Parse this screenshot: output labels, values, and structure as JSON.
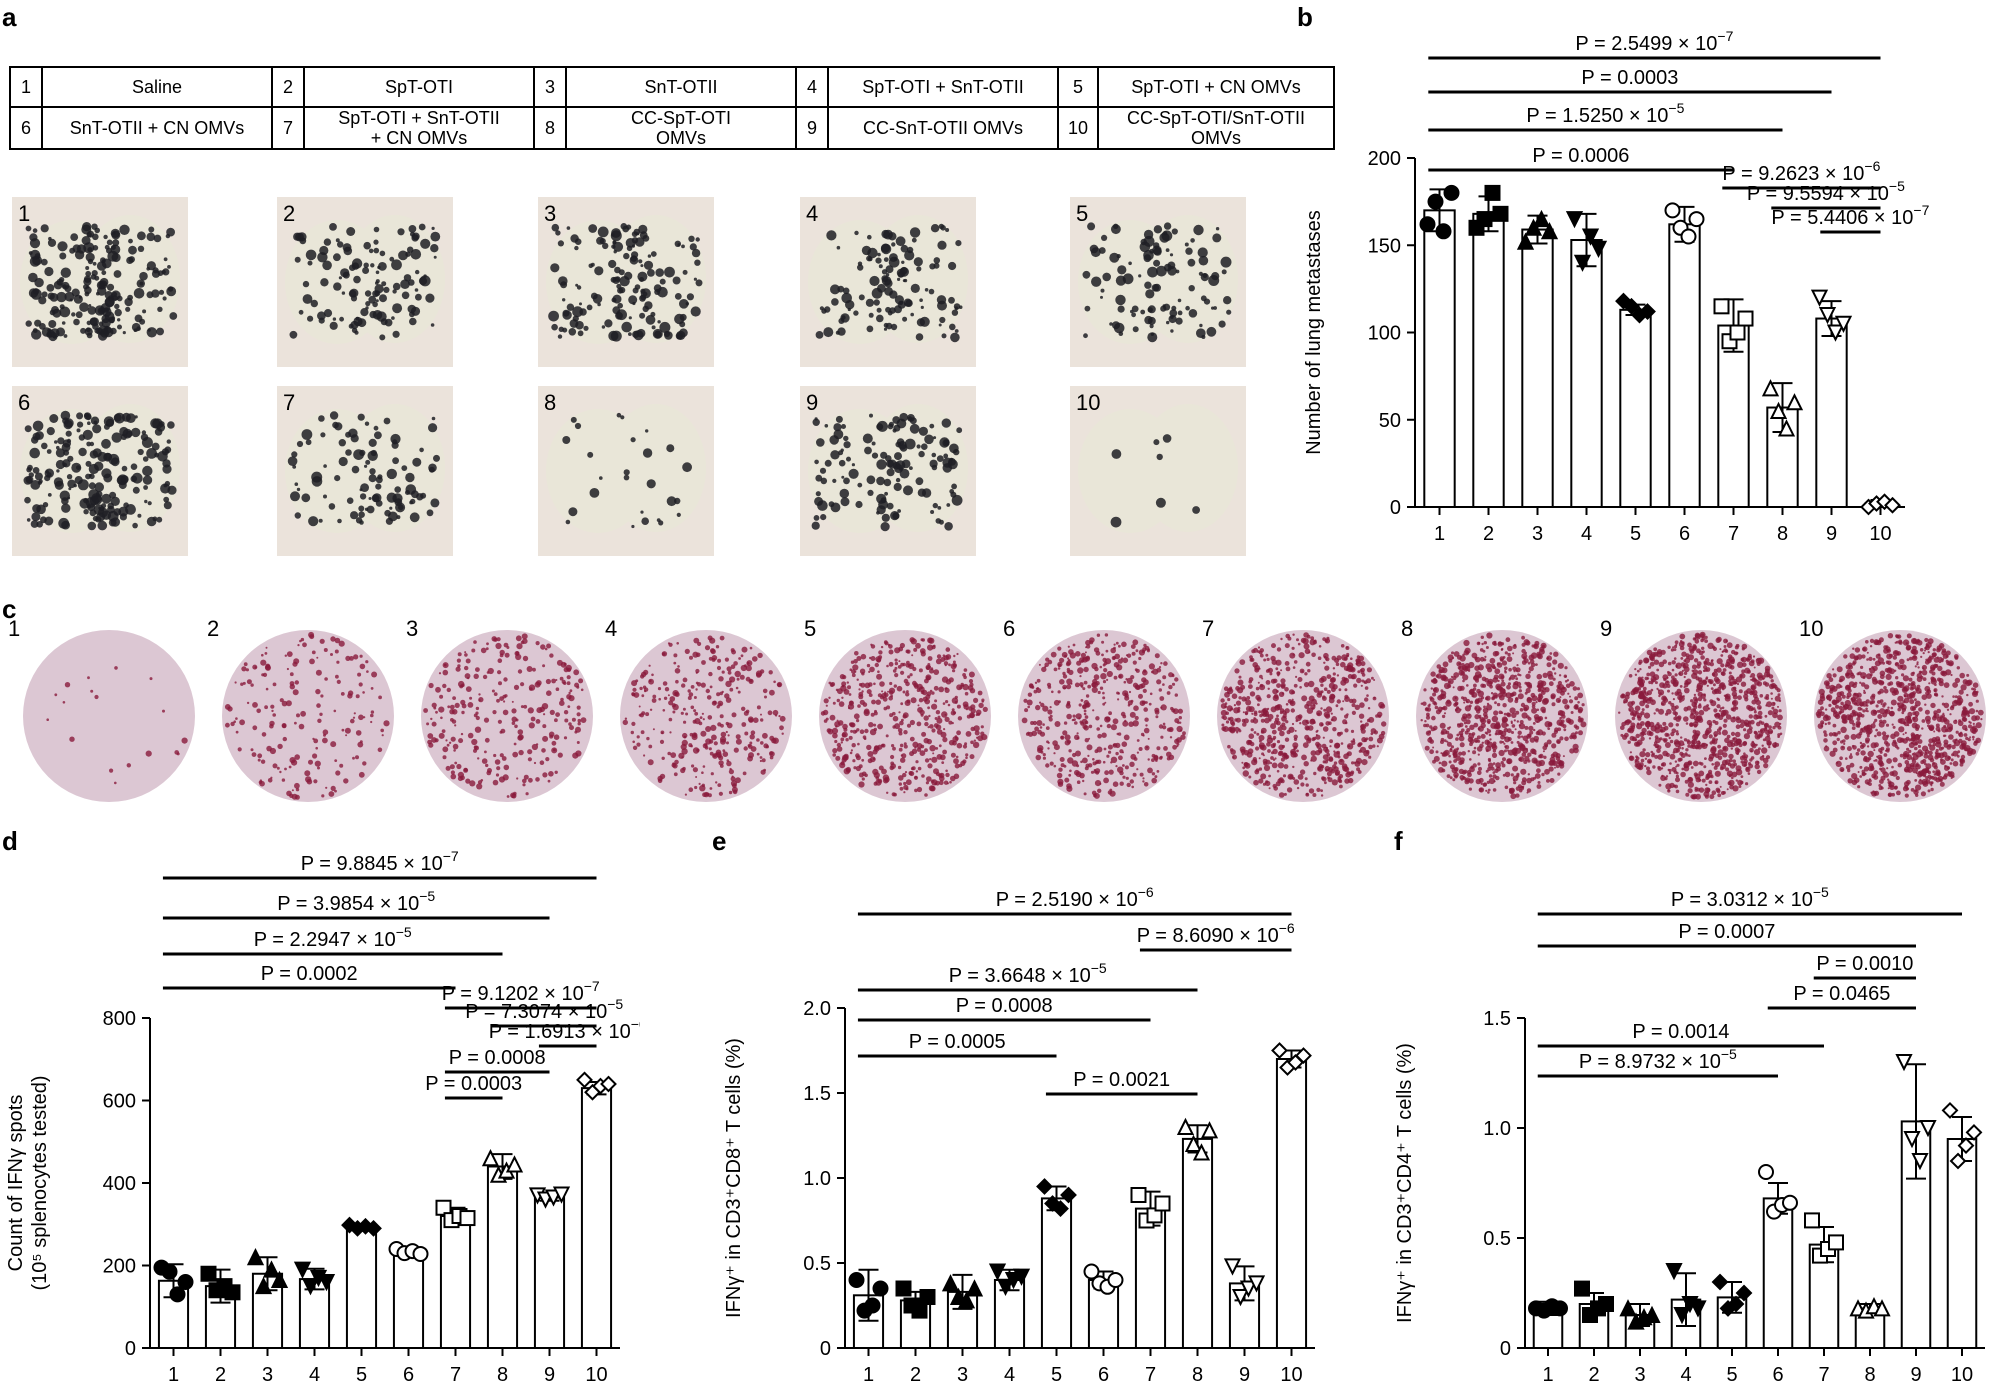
{
  "panels": {
    "a": "a",
    "b": "b",
    "c": "c",
    "d": "d",
    "e": "e",
    "f": "f"
  },
  "legend": [
    {
      "num": "1",
      "label": "Saline"
    },
    {
      "num": "2",
      "label": "SpT-OTI"
    },
    {
      "num": "3",
      "label": "SnT-OTII"
    },
    {
      "num": "4",
      "label": "SpT-OTI + SnT-OTII"
    },
    {
      "num": "5",
      "label": "SpT-OTI + CN OMVs"
    },
    {
      "num": "6",
      "label": "SnT-OTII + CN OMVs"
    },
    {
      "num": "7",
      "label": "SpT-OTI + SnT-OTII\n+ CN OMVs"
    },
    {
      "num": "8",
      "label": "CC-SpT-OTI\nOMVs"
    },
    {
      "num": "9",
      "label": "CC-SnT-OTII OMVs"
    },
    {
      "num": "10",
      "label": "CC-SpT-OTI/SnT-OTII\nOMVs"
    }
  ],
  "lung_photos": {
    "labels": [
      "1",
      "2",
      "3",
      "4",
      "5",
      "6",
      "7",
      "8",
      "9",
      "10"
    ],
    "metastasis_density": [
      0.95,
      0.55,
      0.7,
      0.55,
      0.5,
      0.9,
      0.45,
      0.12,
      0.6,
      0.03
    ],
    "tissue_color": "#e9e6d8",
    "spot_color": "#1f1f24",
    "background_color": "#ebe3db"
  },
  "elispot": {
    "labels": [
      "1",
      "2",
      "3",
      "4",
      "5",
      "6",
      "7",
      "8",
      "9",
      "10"
    ],
    "spot_density": [
      0.02,
      0.2,
      0.3,
      0.35,
      0.55,
      0.5,
      0.7,
      0.85,
      1.0,
      1.0
    ],
    "well_color": "#dcc7d3",
    "spot_color": "#8a1a3c"
  },
  "chart_data": [
    {
      "panel": "b",
      "type": "bar",
      "ylabel": "Number of lung metastases",
      "xlabel": "",
      "categories": [
        "1",
        "2",
        "3",
        "4",
        "5",
        "6",
        "7",
        "8",
        "9",
        "10"
      ],
      "ylim": [
        0,
        200
      ],
      "yticks": [
        "0",
        "50",
        "100",
        "150",
        "200"
      ],
      "values": [
        170,
        168,
        159,
        153,
        113,
        162,
        104,
        57,
        108,
        2
      ],
      "err": [
        12,
        10,
        8,
        15,
        3,
        10,
        15,
        14,
        10,
        2
      ],
      "points": [
        [
          162,
          175,
          158,
          180
        ],
        [
          160,
          165,
          180,
          168
        ],
        [
          152,
          160,
          165,
          158
        ],
        [
          165,
          140,
          155,
          148
        ],
        [
          118,
          115,
          110,
          112
        ],
        [
          170,
          160,
          155,
          165
        ],
        [
          115,
          95,
          100,
          108
        ],
        [
          68,
          55,
          45,
          60
        ],
        [
          120,
          110,
          100,
          105
        ],
        [
          0,
          2,
          3,
          1
        ]
      ],
      "markers": [
        "circle",
        "square",
        "triangle",
        "tri-down",
        "diamond",
        "circle-open",
        "square-open",
        "triangle-open",
        "tri-down-open",
        "diamond-open"
      ],
      "comparisons": [
        {
          "from": 1,
          "to": 10,
          "label": "P = 2.5499 × 10",
          "exp": "−7"
        },
        {
          "from": 1,
          "to": 9,
          "label": "P = 0.0003",
          "exp": ""
        },
        {
          "from": 1,
          "to": 8,
          "label": "P = 1.5250 × 10",
          "exp": "−5"
        },
        {
          "from": 1,
          "to": 7,
          "label": "P = 0.0006",
          "exp": ""
        },
        {
          "from": 7,
          "to": 10,
          "label": "P = 9.2623 × 10",
          "exp": "−6"
        },
        {
          "from": 8,
          "to": 10,
          "label": "P = 9.5594 × 10",
          "exp": "−5"
        },
        {
          "from": 9,
          "to": 10,
          "label": "P = 5.4406 × 10",
          "exp": "−7"
        }
      ]
    },
    {
      "panel": "d",
      "type": "bar",
      "ylabel": "Count of IFNγ spots",
      "ylabel2": "(10⁵ splenocytes tested)",
      "xlabel": "",
      "categories": [
        "1",
        "2",
        "3",
        "4",
        "5",
        "6",
        "7",
        "8",
        "9",
        "10"
      ],
      "ylim": [
        0,
        800
      ],
      "yticks": [
        "0",
        "200",
        "400",
        "600",
        "800"
      ],
      "values": [
        163,
        150,
        180,
        167,
        293,
        232,
        320,
        440,
        365,
        630
      ],
      "err": [
        40,
        40,
        40,
        25,
        5,
        10,
        20,
        30,
        8,
        15
      ],
      "points": [
        [
          195,
          185,
          130,
          160
        ],
        [
          180,
          140,
          150,
          135
        ],
        [
          220,
          150,
          190,
          165
        ],
        [
          190,
          150,
          170,
          160
        ],
        [
          298,
          290,
          295,
          290
        ],
        [
          240,
          230,
          235,
          228
        ],
        [
          340,
          310,
          320,
          315
        ],
        [
          460,
          420,
          430,
          445
        ],
        [
          370,
          360,
          365,
          372
        ],
        [
          650,
          620,
          635,
          640
        ]
      ],
      "markers": [
        "circle",
        "square",
        "triangle",
        "tri-down",
        "diamond",
        "circle-open",
        "square-open",
        "triangle-open",
        "tri-down-open",
        "diamond-open"
      ],
      "comparisons": [
        {
          "from": 1,
          "to": 10,
          "label": "P = 9.8845 × 10",
          "exp": "−7"
        },
        {
          "from": 1,
          "to": 9,
          "label": "P = 3.9854 × 10",
          "exp": "−5"
        },
        {
          "from": 1,
          "to": 8,
          "label": "P = 2.2947 × 10",
          "exp": "−5"
        },
        {
          "from": 1,
          "to": 7,
          "label": "P = 0.0002",
          "exp": ""
        },
        {
          "from": 7,
          "to": 10,
          "label": "P = 9.1202 × 10",
          "exp": "−7"
        },
        {
          "from": 8,
          "to": 10,
          "label": "P = 7.3074 × 10",
          "exp": "−5"
        },
        {
          "from": 9,
          "to": 10,
          "label": "P = 1.6913 × 10",
          "exp": "−6"
        },
        {
          "from": 7,
          "to": 9,
          "label": "P = 0.0008",
          "exp": ""
        },
        {
          "from": 7,
          "to": 8,
          "label": "P = 0.0003",
          "exp": ""
        }
      ]
    },
    {
      "panel": "e",
      "type": "bar",
      "ylabel": "IFNγ⁺ in CD3⁺CD8⁺ T cells (%)",
      "xlabel": "",
      "categories": [
        "1",
        "2",
        "3",
        "4",
        "5",
        "6",
        "7",
        "8",
        "9",
        "10"
      ],
      "ylim": [
        0,
        2.0
      ],
      "yticks": [
        "0",
        "0.5",
        "1.0",
        "1.5",
        "2.0"
      ],
      "values": [
        0.31,
        0.28,
        0.33,
        0.4,
        0.88,
        0.4,
        0.82,
        1.23,
        0.38,
        1.7
      ],
      "err": [
        0.15,
        0.05,
        0.1,
        0.06,
        0.07,
        0.05,
        0.1,
        0.08,
        0.1,
        0.05
      ],
      "points": [
        [
          0.4,
          0.22,
          0.25,
          0.35
        ],
        [
          0.35,
          0.25,
          0.22,
          0.3
        ],
        [
          0.38,
          0.3,
          0.28,
          0.35
        ],
        [
          0.45,
          0.36,
          0.4,
          0.42
        ],
        [
          0.95,
          0.85,
          0.82,
          0.9
        ],
        [
          0.45,
          0.38,
          0.36,
          0.4
        ],
        [
          0.9,
          0.75,
          0.78,
          0.85
        ],
        [
          1.3,
          1.2,
          1.15,
          1.28
        ],
        [
          0.48,
          0.3,
          0.35,
          0.38
        ],
        [
          1.75,
          1.65,
          1.68,
          1.72
        ]
      ],
      "markers": [
        "circle",
        "square",
        "triangle",
        "tri-down",
        "diamond",
        "circle-open",
        "square-open",
        "triangle-open",
        "tri-down-open",
        "diamond-open"
      ],
      "comparisons": [
        {
          "from": 1,
          "to": 10,
          "label": "P = 2.5190 × 10",
          "exp": "−6"
        },
        {
          "from": 7,
          "to": 10,
          "label": "P = 8.6090 × 10",
          "exp": "−6"
        },
        {
          "from": 1,
          "to": 8,
          "label": "P = 3.6648 × 10",
          "exp": "−5"
        },
        {
          "from": 1,
          "to": 7,
          "label": "P = 0.0008",
          "exp": ""
        },
        {
          "from": 1,
          "to": 5,
          "label": "P = 0.0005",
          "exp": ""
        },
        {
          "from": 5,
          "to": 8,
          "label": "P = 0.0021",
          "exp": ""
        }
      ]
    },
    {
      "panel": "f",
      "type": "bar",
      "ylabel": "IFNγ⁺ in CD3⁺CD4⁺ T cells (%)",
      "xlabel": "",
      "categories": [
        "1",
        "2",
        "3",
        "4",
        "5",
        "6",
        "7",
        "8",
        "9",
        "10"
      ],
      "ylim": [
        0,
        1.5
      ],
      "yticks": [
        "0",
        "0.5",
        "1.0",
        "1.5"
      ],
      "values": [
        0.18,
        0.2,
        0.15,
        0.22,
        0.23,
        0.68,
        0.47,
        0.18,
        1.03,
        0.95
      ],
      "err": [
        0.03,
        0.05,
        0.05,
        0.12,
        0.07,
        0.07,
        0.08,
        0.02,
        0.26,
        0.1
      ],
      "points": [
        [
          0.18,
          0.17,
          0.19,
          0.18
        ],
        [
          0.27,
          0.15,
          0.18,
          0.2
        ],
        [
          0.18,
          0.12,
          0.14,
          0.15
        ],
        [
          0.35,
          0.15,
          0.2,
          0.18
        ],
        [
          0.3,
          0.18,
          0.2,
          0.25
        ],
        [
          0.8,
          0.62,
          0.65,
          0.66
        ],
        [
          0.58,
          0.42,
          0.45,
          0.48
        ],
        [
          0.18,
          0.17,
          0.19,
          0.18
        ],
        [
          1.3,
          0.95,
          0.85,
          1.0
        ],
        [
          1.08,
          0.85,
          0.92,
          0.98
        ]
      ],
      "markers": [
        "circle",
        "square",
        "triangle",
        "tri-down",
        "diamond",
        "circle-open",
        "square-open",
        "triangle-open",
        "tri-down-open",
        "diamond-open"
      ],
      "comparisons": [
        {
          "from": 1,
          "to": 10,
          "label": "P = 3.0312 × 10",
          "exp": "−5"
        },
        {
          "from": 1,
          "to": 9,
          "label": "P = 0.0007",
          "exp": ""
        },
        {
          "from": 7,
          "to": 9,
          "label": "P = 0.0010",
          "exp": ""
        },
        {
          "from": 6,
          "to": 9,
          "label": "P = 0.0465",
          "exp": ""
        },
        {
          "from": 1,
          "to": 7,
          "label": "P = 0.0014",
          "exp": ""
        },
        {
          "from": 1,
          "to": 6,
          "label": "P = 8.9732 × 10",
          "exp": "−5"
        }
      ]
    }
  ]
}
